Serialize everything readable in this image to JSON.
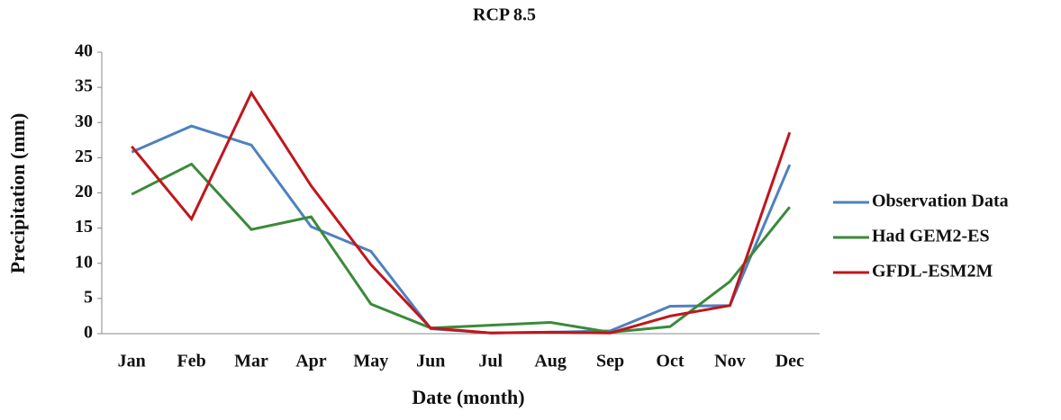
{
  "chart_data": {
    "type": "line",
    "title": "RCP 8.5",
    "x_label": "Date (month)",
    "y_label": "Precipitation (mm)",
    "categories": [
      "Jan",
      "Feb",
      "Mar",
      "Apr",
      "May",
      "Jun",
      "Jul",
      "Aug",
      "Sep",
      "Oct",
      "Nov",
      "Dec"
    ],
    "series": [
      {
        "name": "Observation Data",
        "color": "#4f81bd",
        "values": [
          25.8,
          29.5,
          26.8,
          15.2,
          11.7,
          0.7,
          0.1,
          0.2,
          0.4,
          3.9,
          4.0,
          24.0
        ]
      },
      {
        "name": "Had GEM2-ES",
        "color": "#3a8a3a",
        "values": [
          19.8,
          24.1,
          14.8,
          16.6,
          4.2,
          0.8,
          1.2,
          1.6,
          0.2,
          1.0,
          7.4,
          18.0
        ]
      },
      {
        "name": "GFDL-ESM2M",
        "color": "#c0161c",
        "values": [
          26.6,
          16.3,
          34.2,
          21.0,
          9.8,
          0.8,
          0.1,
          0.2,
          0.1,
          2.5,
          4.0,
          28.6
        ]
      }
    ],
    "ylim": [
      0,
      40
    ],
    "yticks": [
      0,
      5,
      10,
      15,
      20,
      25,
      30,
      35,
      40
    ],
    "grid": false,
    "legend": "right"
  }
}
